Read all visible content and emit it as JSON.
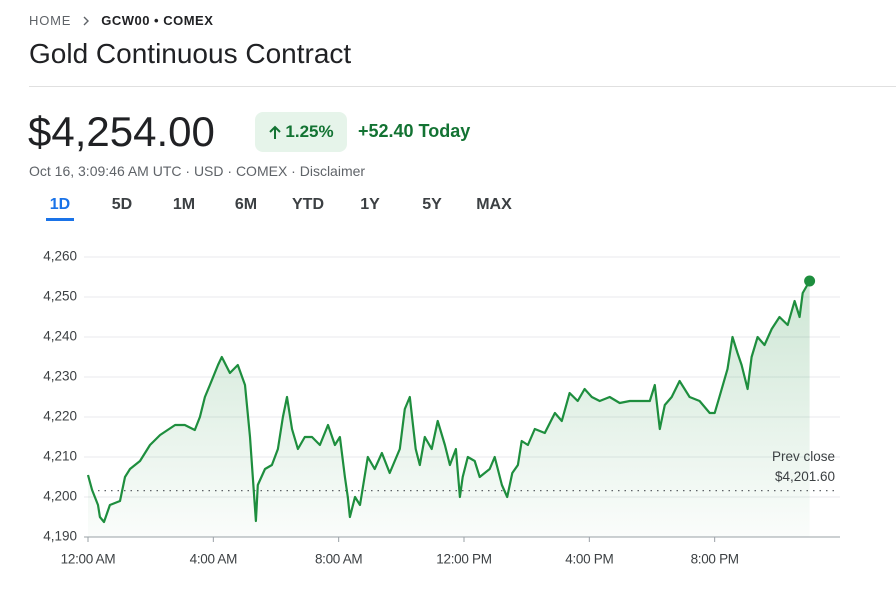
{
  "breadcrumb": {
    "home": "HOME",
    "symbol": "GCW00 • COMEX"
  },
  "header": {
    "title": "Gold Continuous Contract",
    "price": "$4,254.00",
    "change_percent": "1.25%",
    "change_today": "+52.40 Today",
    "meta": "Oct 16, 3:09:46 AM UTC · USD · COMEX · Disclaimer"
  },
  "tabs": [
    "1D",
    "5D",
    "1M",
    "6M",
    "YTD",
    "1Y",
    "5Y",
    "MAX"
  ],
  "active_tab": "1D",
  "chart_data": {
    "type": "line",
    "color": "#1e8e3e",
    "grid": true,
    "x": [
      0,
      0.13,
      0.32,
      0.38,
      0.51,
      0.7,
      1.02,
      1.18,
      1.34,
      1.66,
      1.98,
      2.3,
      2.78,
      3.09,
      3.41,
      3.57,
      3.73,
      3.89,
      4.15,
      4.27,
      4.53,
      4.78,
      5.01,
      5.17,
      5.26,
      5.36,
      5.42,
      5.65,
      5.87,
      6.06,
      6.22,
      6.35,
      6.51,
      6.7,
      6.92,
      7.15,
      7.4,
      7.66,
      7.88,
      8.04,
      8.2,
      8.29,
      8.36,
      8.52,
      8.68,
      8.93,
      9.15,
      9.38,
      9.63,
      9.95,
      10.11,
      10.27,
      10.46,
      10.59,
      10.75,
      10.97,
      11.16,
      11.39,
      11.55,
      11.74,
      11.87,
      11.96,
      12.12,
      12.34,
      12.5,
      12.82,
      12.98,
      13.21,
      13.38,
      13.54,
      13.72,
      13.84,
      14.04,
      14.26,
      14.58,
      14.9,
      15.12,
      15.37,
      15.63,
      15.85,
      16.08,
      16.33,
      16.65,
      16.97,
      17.29,
      17.61,
      17.93,
      18.09,
      18.25,
      18.41,
      18.63,
      18.88,
      19.2,
      19.52,
      19.84,
      20.0,
      20.15,
      20.41,
      20.57,
      20.73,
      20.86,
      21.05,
      21.18,
      21.37,
      21.59,
      21.82,
      22.07,
      22.33,
      22.55,
      22.71,
      22.81,
      23.03
    ],
    "values": [
      4205.5,
      4201.75,
      4198,
      4195,
      4193.75,
      4198,
      4199,
      4205,
      4207,
      4209,
      4213,
      4215.5,
      4218,
      4218,
      4216.75,
      4220,
      4225,
      4228,
      4233,
      4235,
      4231,
      4233,
      4228,
      4215,
      4205,
      4194,
      4203,
      4207,
      4208,
      4212,
      4220,
      4225,
      4217,
      4212,
      4215,
      4215,
      4213,
      4218,
      4213,
      4215,
      4205,
      4200,
      4195,
      4200,
      4198,
      4210,
      4207,
      4211,
      4206,
      4212,
      4222,
      4225,
      4212,
      4208,
      4215,
      4212,
      4219,
      4213,
      4208,
      4212,
      4200,
      4205,
      4210,
      4209,
      4205,
      4207,
      4210,
      4203,
      4200,
      4206,
      4208,
      4214,
      4213,
      4217,
      4216,
      4221,
      4219,
      4226,
      4224,
      4227,
      4225,
      4224,
      4225,
      4223.5,
      4224,
      4224,
      4224,
      4228,
      4217,
      4223,
      4225,
      4229,
      4225,
      4224,
      4221,
      4221,
      4225,
      4232,
      4240,
      4236,
      4233,
      4227,
      4235,
      4240,
      4238,
      4242,
      4245,
      4243,
      4249,
      4245,
      4251,
      4254
    ],
    "xlim": [
      0,
      24
    ],
    "xticks": [
      {
        "value": 0,
        "label": "12:00 AM"
      },
      {
        "value": 4,
        "label": "4:00 AM"
      },
      {
        "value": 8,
        "label": "8:00 AM"
      },
      {
        "value": 12,
        "label": "12:00 PM"
      },
      {
        "value": 16,
        "label": "4:00 PM"
      },
      {
        "value": 20,
        "label": "8:00 PM"
      }
    ],
    "ylim": [
      4190,
      4260
    ],
    "yticks": [
      {
        "value": 4190,
        "label": "4,190"
      },
      {
        "value": 4200,
        "label": "4,200"
      },
      {
        "value": 4210,
        "label": "4,210"
      },
      {
        "value": 4220,
        "label": "4,220"
      },
      {
        "value": 4230,
        "label": "4,230"
      },
      {
        "value": 4240,
        "label": "4,240"
      },
      {
        "value": 4250,
        "label": "4,250"
      },
      {
        "value": 4260,
        "label": "4,260"
      }
    ],
    "reference_line": {
      "label": "Prev close",
      "value": 4201.6,
      "value_label": "$4,201.60"
    }
  }
}
